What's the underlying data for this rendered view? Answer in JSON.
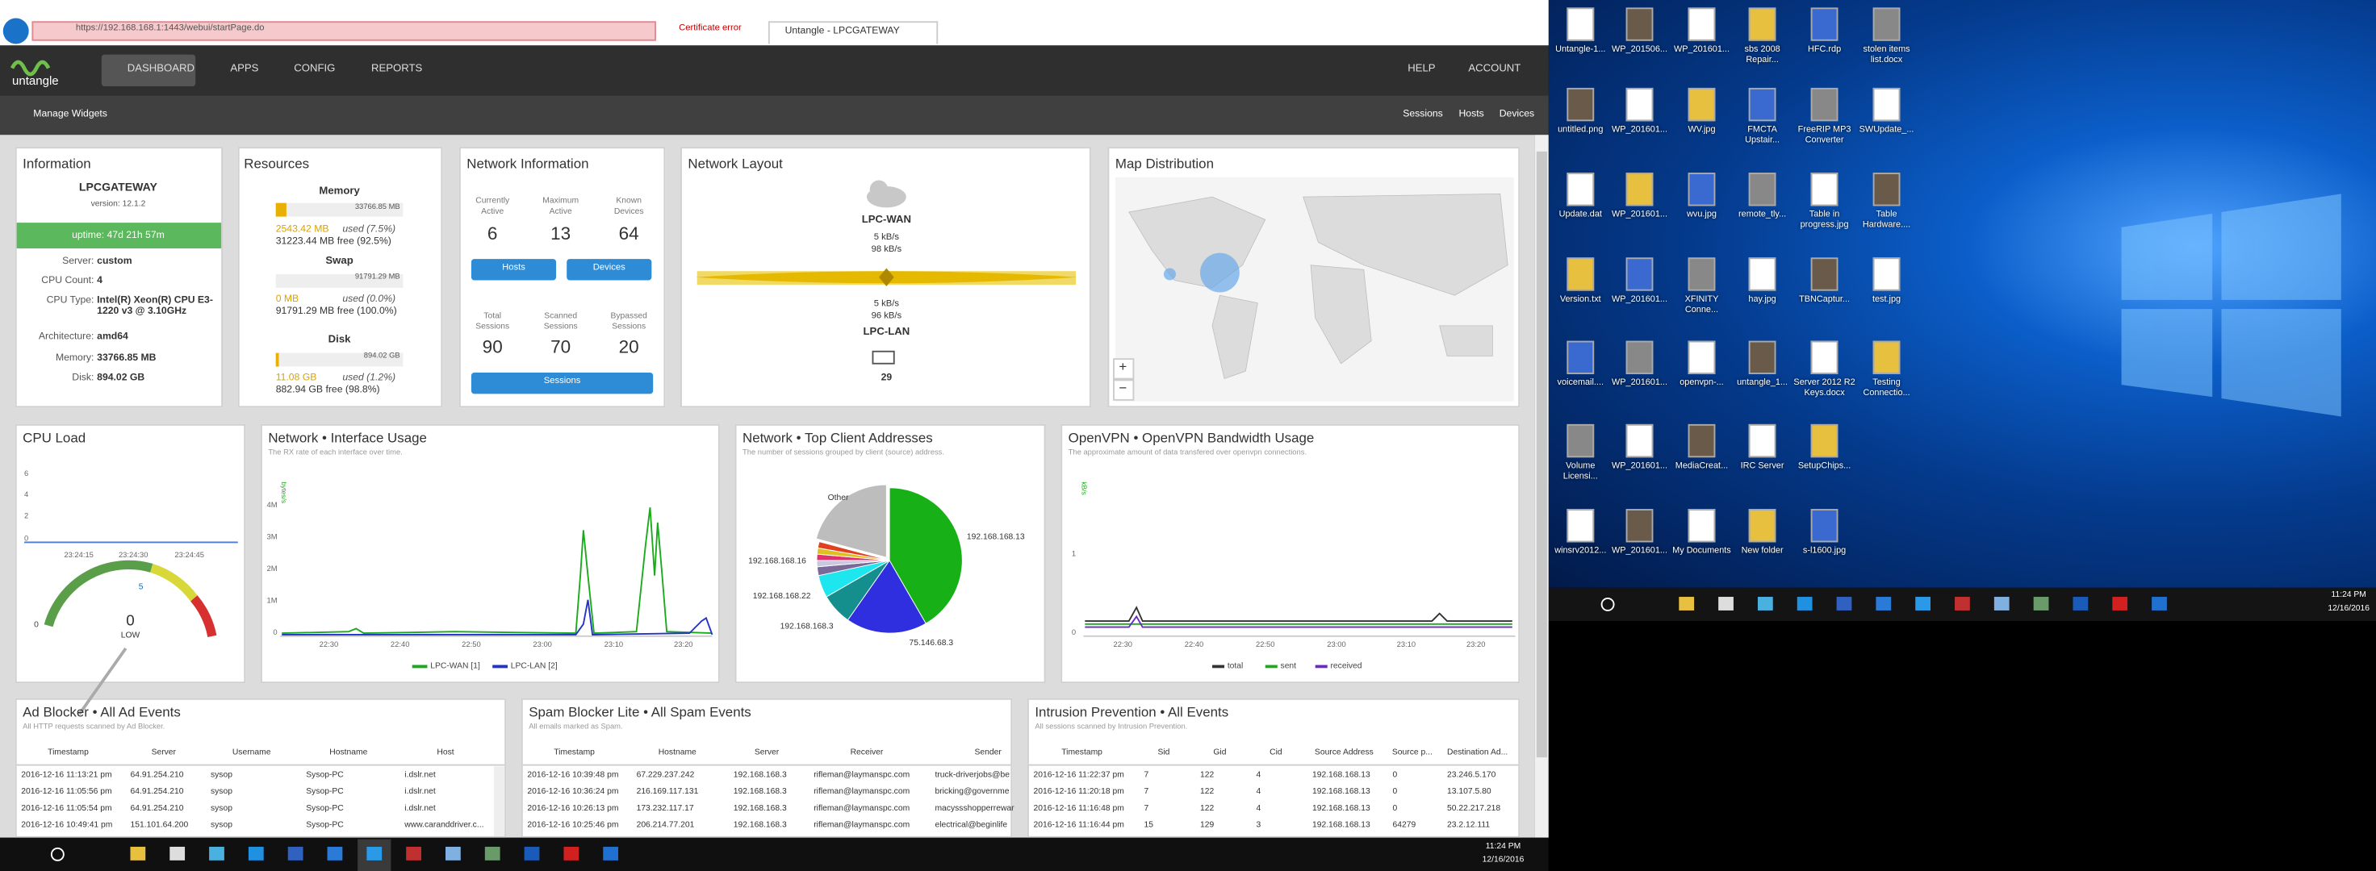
{
  "browser": {
    "url": "https://192.168.168.1:1443/webui/startPage.do",
    "cert": "Certificate error",
    "tab": "Untangle - LPCGATEWAY"
  },
  "nav": {
    "logo": "untangle",
    "items": [
      "DASHBOARD",
      "APPS",
      "CONFIG",
      "REPORTS"
    ],
    "right": [
      "HELP",
      "ACCOUNT"
    ]
  },
  "toolbar": {
    "manage": "Manage Widgets",
    "links": [
      "Sessions",
      "Hosts",
      "Devices"
    ]
  },
  "information": {
    "title": "Information",
    "host": "LPCGATEWAY",
    "version": "version: 12.1.2",
    "uptime": "uptime: 47d 21h 57m",
    "rows": [
      [
        "Server:",
        "custom"
      ],
      [
        "CPU Count:",
        "4"
      ],
      [
        "CPU Type:",
        "Intel(R) Xeon(R) CPU E3-1220 v3 @ 3.10GHz"
      ],
      [
        "Architecture:",
        "amd64"
      ],
      [
        "Memory:",
        "33766.85 MB"
      ],
      [
        "Disk:",
        "894.02 GB"
      ]
    ]
  },
  "resources": {
    "title": "Resources",
    "items": [
      {
        "label": "Memory",
        "total": "33766.85 MB",
        "used": "2543.42 MB",
        "used_label": "used (7.5%)",
        "free": "31223.44 MB free (92.5%)"
      },
      {
        "label": "Swap",
        "total": "91791.29 MB",
        "used": "0 MB",
        "used_label": "used (0.0%)",
        "free": "91791.29 MB free (100.0%)"
      },
      {
        "label": "Disk",
        "total": "894.02 GB",
        "used": "11.08 GB",
        "used_label": "used (1.2%)",
        "free": "882.94 GB free (98.8%)"
      }
    ]
  },
  "network_info": {
    "title": "Network Information",
    "stats": [
      {
        "label": [
          "Currently",
          "Active"
        ],
        "value": 6
      },
      {
        "label": [
          "Maximum",
          "Active"
        ],
        "value": 13
      },
      {
        "label": [
          "Known",
          "Devices"
        ],
        "value": 64
      }
    ],
    "buttons": [
      "Hosts",
      "Devices"
    ],
    "sessions": [
      {
        "label": [
          "Total",
          "Sessions"
        ],
        "value": 90
      },
      {
        "label": [
          "Scanned",
          "Sessions"
        ],
        "value": 70
      },
      {
        "label": [
          "Bypassed",
          "Sessions"
        ],
        "value": 20
      }
    ],
    "sessions_button": "Sessions"
  },
  "network_layout": {
    "title": "Network Layout",
    "wan": "LPC-WAN",
    "wan_up": "5 kB/s",
    "wan_down": "98 kB/s",
    "lan_up": "5 kB/s",
    "lan_down": "96 kB/s",
    "lan": "LPC-LAN",
    "devices": 29
  },
  "map": {
    "title": "Map Distribution",
    "zoom": [
      "+",
      "−"
    ]
  },
  "cpu": {
    "title": "CPU Load",
    "yticks": [
      0,
      2,
      4,
      6
    ],
    "xticks": [
      "23:24:15",
      "23:24:30",
      "23:24:45"
    ],
    "gauge_ticks": [
      0,
      5
    ],
    "gauge_value": 0,
    "gauge_label": "LOW"
  },
  "interface": {
    "title": "Network • Interface Usage",
    "subtitle": "The RX rate of each interface over time.",
    "unit": "bytes/s",
    "yticks": [
      "0",
      "1M",
      "2M",
      "3M",
      "4M"
    ],
    "xticks": [
      "22:30",
      "22:40",
      "22:50",
      "23:00",
      "23:10",
      "23:20"
    ],
    "legend": [
      "LPC-WAN [1]",
      "LPC-LAN [2]"
    ]
  },
  "top_clients": {
    "title": "Network • Top Client Addresses",
    "subtitle": "The number of sessions grouped by client (source) address.",
    "labels": [
      "192.168.168.13",
      "75.146.68.3",
      "192.168.168.3",
      "192.168.168.22",
      "192.168.168.16",
      "Other"
    ]
  },
  "openvpn": {
    "title": "OpenVPN • OpenVPN Bandwidth Usage",
    "subtitle": "The approximate amount of data transfered over openvpn connections.",
    "unit": "kB/s",
    "yticks": [
      0,
      1
    ],
    "xticks": [
      "22:30",
      "22:40",
      "22:50",
      "23:00",
      "23:10",
      "23:20"
    ],
    "legend": [
      "total",
      "sent",
      "received"
    ]
  },
  "tables": [
    {
      "title": "Ad Blocker • All Ad Events",
      "subtitle": "All HTTP requests scanned by Ad Blocker.",
      "columns": [
        "Timestamp",
        "Server",
        "Username",
        "Hostname",
        "Host"
      ],
      "rows": [
        [
          "2016-12-16 11:13:21 pm",
          "64.91.254.210",
          "sysop",
          "Sysop-PC",
          "i.dslr.net"
        ],
        [
          "2016-12-16 11:05:56 pm",
          "64.91.254.210",
          "sysop",
          "Sysop-PC",
          "i.dslr.net"
        ],
        [
          "2016-12-16 11:05:54 pm",
          "64.91.254.210",
          "sysop",
          "Sysop-PC",
          "i.dslr.net"
        ],
        [
          "2016-12-16 10:49:41 pm",
          "151.101.64.200",
          "sysop",
          "Sysop-PC",
          "www.caranddriver.c..."
        ]
      ]
    },
    {
      "title": "Spam Blocker Lite • All Spam Events",
      "subtitle": "All emails marked as Spam.",
      "columns": [
        "Timestamp",
        "Hostname",
        "Server",
        "Receiver",
        "Sender"
      ],
      "rows": [
        [
          "2016-12-16 10:39:48 pm",
          "67.229.237.242",
          "192.168.168.3",
          "rifleman@laymanspc.com",
          "truck-driverjobs@be"
        ],
        [
          "2016-12-16 10:36:24 pm",
          "216.169.117.131",
          "192.168.168.3",
          "rifleman@laymanspc.com",
          "bricking@governme"
        ],
        [
          "2016-12-16 10:26:13 pm",
          "173.232.117.17",
          "192.168.168.3",
          "rifleman@laymanspc.com",
          "macyssshopperrewar"
        ],
        [
          "2016-12-16 10:25:46 pm",
          "206.214.77.201",
          "192.168.168.3",
          "rifleman@laymanspc.com",
          "electrical@beginlife"
        ]
      ]
    },
    {
      "title": "Intrusion Prevention • All Events",
      "subtitle": "All sessions scanned by Intrusion Prevention.",
      "columns": [
        "Timestamp",
        "Sid",
        "Gid",
        "Cid",
        "Source Address",
        "Source p...",
        "Destination Ad..."
      ],
      "rows": [
        [
          "2016-12-16 11:22:37 pm",
          "7",
          "122",
          "4",
          "192.168.168.13",
          "0",
          "23.246.5.170"
        ],
        [
          "2016-12-16 11:20:18 pm",
          "7",
          "122",
          "4",
          "192.168.168.13",
          "0",
          "13.107.5.80"
        ],
        [
          "2016-12-16 11:16:48 pm",
          "7",
          "122",
          "4",
          "192.168.168.13",
          "0",
          "50.22.217.218"
        ],
        [
          "2016-12-16 11:16:44 pm",
          "15",
          "129",
          "3",
          "192.168.168.13",
          "64279",
          "23.2.12.111"
        ]
      ]
    }
  ],
  "desktop_icons": [
    [
      "Untangle-1...",
      "WP_201506...",
      "WP_201601...",
      "sbs 2008 Repair...",
      "HFC.rdp",
      "stolen items list.docx"
    ],
    [
      "untitled.png",
      "WP_201601...",
      "WV.jpg",
      "FMCTA Upstair...",
      "FreeRIP MP3 Converter",
      "SWUpdate_..."
    ],
    [
      "Update.dat",
      "WP_201601...",
      "wvu.jpg",
      "remote_tly...",
      "Table in progress.jpg",
      "Table Hardware...."
    ],
    [
      "Version.txt",
      "WP_201601...",
      "XFINITY Conne...",
      "hay.jpg",
      "TBNCaptur...",
      "test.jpg"
    ],
    [
      "voicemail....",
      "WP_201601...",
      "openvpn-...",
      "untangle_1...",
      "Server 2012 R2 Keys.docx",
      "Testing Connectio..."
    ],
    [
      "Volume Licensi...",
      "WP_201601...",
      "MediaCreat...",
      "IRC Server",
      "SetupChips..."
    ],
    [
      "winsrv2012...",
      "WP_201601...",
      "My Documents",
      "New folder",
      "s-l1600.jpg"
    ]
  ],
  "clock": {
    "time": "11:24 PM",
    "date": "12/16/2016"
  }
}
